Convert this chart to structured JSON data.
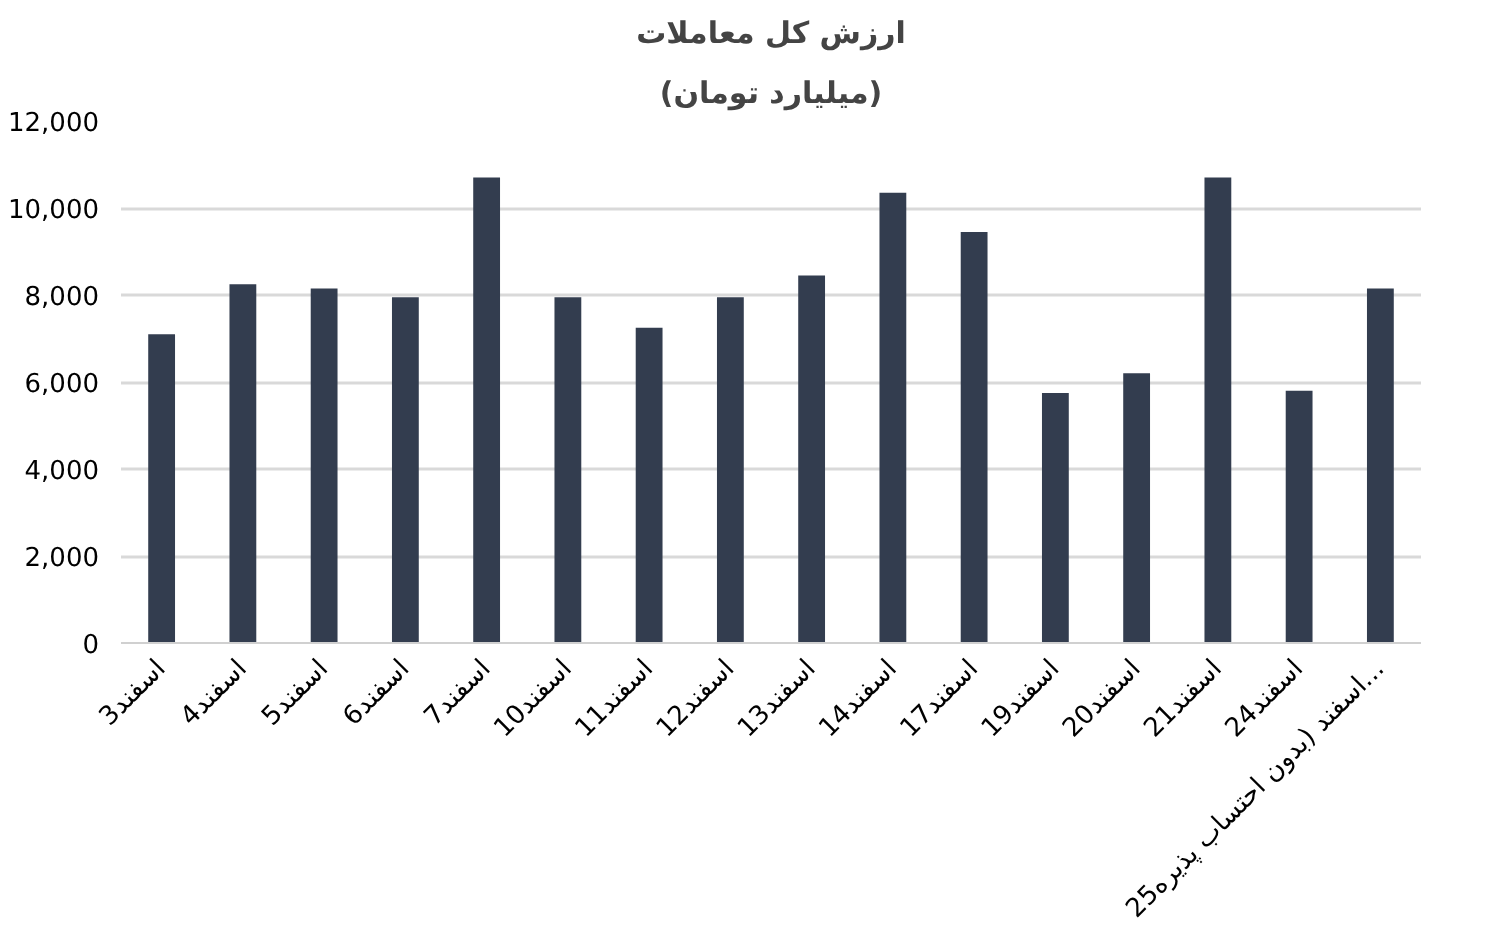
{
  "chart_data": {
    "type": "bar",
    "title": "ارزش کل معاملات",
    "subtitle": "(میلیارد تومان)",
    "categories": [
      "3اسفند",
      "4اسفند",
      "5اسفند",
      "6اسفند",
      "7اسفند",
      "10اسفند",
      "11اسفند",
      "12اسفند",
      "13اسفند",
      "14اسفند",
      "17اسفند",
      "19اسفند",
      "20اسفند",
      "21اسفند",
      "24اسفند",
      "25اسفند (بدون احتساب پذیره..."
    ],
    "values": [
      7100,
      8250,
      8150,
      7950,
      10700,
      7950,
      7250,
      7950,
      8450,
      10350,
      9450,
      5750,
      6200,
      10700,
      5800,
      8150
    ],
    "color": "#333d4f",
    "ylim": [
      0,
      12000
    ],
    "yticks": [
      {
        "value": 0,
        "label": "0"
      },
      {
        "value": 2000,
        "label": "2,000"
      },
      {
        "value": 4000,
        "label": "4,000"
      },
      {
        "value": 6000,
        "label": "6,000"
      },
      {
        "value": 8000,
        "label": "8,000"
      },
      {
        "value": 10000,
        "label": "10,000"
      },
      {
        "value": 12000,
        "label": "12,000"
      }
    ],
    "grid": "y"
  }
}
